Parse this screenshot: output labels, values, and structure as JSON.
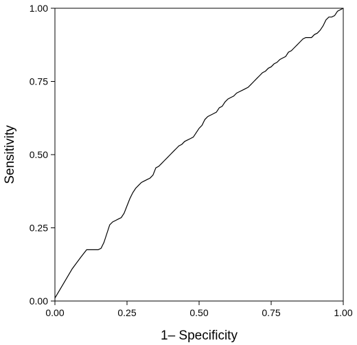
{
  "chart_data": {
    "type": "line",
    "xlabel": "1– Specificity",
    "ylabel": "Sensitivity",
    "xlim": [
      0,
      1
    ],
    "ylim": [
      0,
      1
    ],
    "grid": false,
    "x_ticks": [
      "0.00",
      "0.25",
      "0.50",
      "0.75",
      "1.00"
    ],
    "y_ticks": [
      "0.00",
      "0.25",
      "0.50",
      "0.75",
      "1.00"
    ],
    "x_tick_values": [
      0,
      0.25,
      0.5,
      0.75,
      1
    ],
    "y_tick_values": [
      0,
      0.25,
      0.5,
      0.75,
      1
    ],
    "series": [
      {
        "color": "#000000",
        "x": [
          0.0,
          0.03,
          0.06,
          0.09,
          0.11,
          0.12,
          0.14,
          0.15,
          0.16,
          0.17,
          0.18,
          0.19,
          0.2,
          0.21,
          0.22,
          0.23,
          0.24,
          0.25,
          0.26,
          0.27,
          0.28,
          0.29,
          0.3,
          0.31,
          0.32,
          0.33,
          0.34,
          0.35,
          0.36,
          0.37,
          0.38,
          0.39,
          0.4,
          0.41,
          0.42,
          0.43,
          0.44,
          0.45,
          0.46,
          0.47,
          0.48,
          0.49,
          0.5,
          0.51,
          0.52,
          0.53,
          0.54,
          0.55,
          0.56,
          0.57,
          0.58,
          0.59,
          0.6,
          0.61,
          0.62,
          0.63,
          0.64,
          0.65,
          0.66,
          0.67,
          0.68,
          0.69,
          0.7,
          0.71,
          0.72,
          0.73,
          0.74,
          0.75,
          0.76,
          0.77,
          0.78,
          0.79,
          0.8,
          0.81,
          0.82,
          0.83,
          0.84,
          0.85,
          0.86,
          0.87,
          0.88,
          0.89,
          0.9,
          0.91,
          0.92,
          0.93,
          0.94,
          0.95,
          0.96,
          0.97,
          0.98,
          0.99,
          1.0
        ],
        "y": [
          0.01,
          0.06,
          0.11,
          0.15,
          0.175,
          0.175,
          0.175,
          0.175,
          0.18,
          0.2,
          0.23,
          0.26,
          0.27,
          0.275,
          0.28,
          0.285,
          0.3,
          0.325,
          0.35,
          0.37,
          0.385,
          0.395,
          0.405,
          0.41,
          0.415,
          0.42,
          0.43,
          0.455,
          0.46,
          0.47,
          0.48,
          0.49,
          0.5,
          0.51,
          0.52,
          0.53,
          0.535,
          0.545,
          0.55,
          0.555,
          0.56,
          0.575,
          0.59,
          0.6,
          0.62,
          0.63,
          0.635,
          0.64,
          0.645,
          0.66,
          0.665,
          0.68,
          0.69,
          0.695,
          0.7,
          0.71,
          0.715,
          0.72,
          0.725,
          0.73,
          0.74,
          0.75,
          0.76,
          0.77,
          0.78,
          0.785,
          0.795,
          0.8,
          0.81,
          0.815,
          0.825,
          0.83,
          0.835,
          0.85,
          0.855,
          0.865,
          0.875,
          0.885,
          0.895,
          0.9,
          0.9,
          0.9,
          0.91,
          0.915,
          0.925,
          0.94,
          0.96,
          0.97,
          0.97,
          0.975,
          0.99,
          0.995,
          1.0
        ]
      }
    ]
  }
}
